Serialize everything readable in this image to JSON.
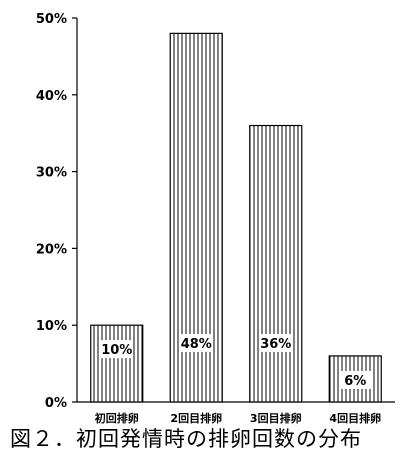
{
  "chart_data": {
    "type": "bar",
    "categories": [
      "初回排卵",
      "2回目排卵",
      "3回目排卵",
      "4回目排卵"
    ],
    "values": [
      10,
      48,
      36,
      6
    ],
    "data_labels": [
      "10%",
      "48%",
      "36%",
      "6%"
    ],
    "ylim": [
      0,
      50
    ],
    "yticks": [
      0,
      10,
      20,
      30,
      40,
      50
    ],
    "ytick_labels": [
      "0%",
      "10%",
      "20%",
      "30%",
      "40%",
      "50%"
    ],
    "xlabel": "",
    "ylabel": "",
    "grid": false,
    "bar_fill": "vertical-hatch",
    "bar_color": "#000000",
    "caption": "図２．初回発情時の排卵回数の分布"
  }
}
